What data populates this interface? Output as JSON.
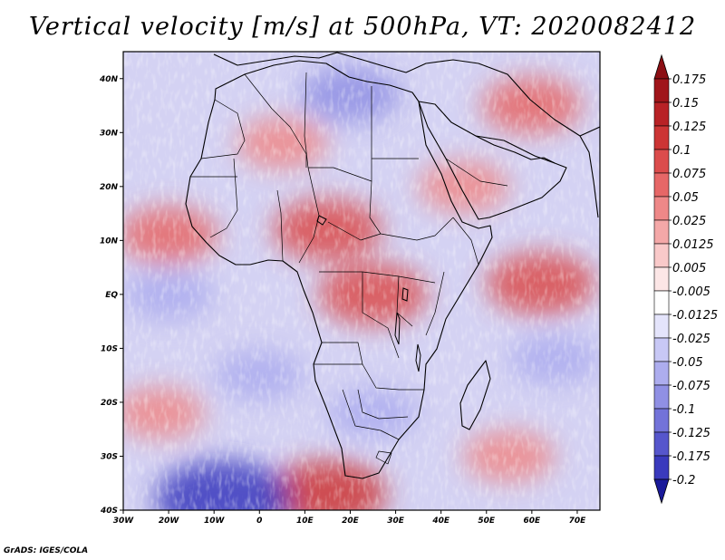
{
  "title": "Vertical velocity [m/s] at 500hPa, VT: 2020082412",
  "credit": "GrADS: IGES/COLA",
  "map": {
    "region": "Africa and surrounding oceans",
    "lon_range": [
      -30,
      75
    ],
    "lat_range": [
      -40,
      45
    ],
    "x_ticks": [
      {
        "lon": -30,
        "label": "30W"
      },
      {
        "lon": -20,
        "label": "20W"
      },
      {
        "lon": -10,
        "label": "10W"
      },
      {
        "lon": 0,
        "label": "0"
      },
      {
        "lon": 10,
        "label": "10E"
      },
      {
        "lon": 20,
        "label": "20E"
      },
      {
        "lon": 30,
        "label": "30E"
      },
      {
        "lon": 40,
        "label": "40E"
      },
      {
        "lon": 50,
        "label": "50E"
      },
      {
        "lon": 60,
        "label": "60E"
      },
      {
        "lon": 70,
        "label": "70E"
      }
    ],
    "y_ticks": [
      {
        "lat": 40,
        "label": "40N"
      },
      {
        "lat": 30,
        "label": "30N"
      },
      {
        "lat": 20,
        "label": "20N"
      },
      {
        "lat": 10,
        "label": "10N"
      },
      {
        "lat": 0,
        "label": "EQ"
      },
      {
        "lat": -10,
        "label": "10S"
      },
      {
        "lat": -20,
        "label": "20S"
      },
      {
        "lat": -30,
        "label": "30S"
      },
      {
        "lat": -40,
        "label": "40S"
      }
    ],
    "field_regions": [
      {
        "name": "sahel-ascent",
        "lon": 15,
        "lat": 12,
        "value": 0.1
      },
      {
        "name": "west-africa-coast-ascent",
        "lon": -20,
        "lat": 11,
        "value": 0.075
      },
      {
        "name": "congo-ascent",
        "lon": 25,
        "lat": 0,
        "value": 0.1
      },
      {
        "name": "arabia-ascent",
        "lon": 45,
        "lat": 20,
        "value": 0.05
      },
      {
        "name": "mideast-ascent",
        "lon": 60,
        "lat": 35,
        "value": 0.075
      },
      {
        "name": "sahara-ascent",
        "lon": 5,
        "lat": 28,
        "value": 0.05
      },
      {
        "name": "indian-ocean-ascent",
        "lon": 62,
        "lat": 2,
        "value": 0.1
      },
      {
        "name": "south-atlantic-ascent",
        "lon": 15,
        "lat": -37,
        "value": 0.125
      },
      {
        "name": "southwest-atlantic-ascent",
        "lon": -22,
        "lat": -22,
        "value": 0.05
      },
      {
        "name": "south-indian-ascent",
        "lon": 55,
        "lat": -30,
        "value": 0.05
      },
      {
        "name": "atlantic-descent",
        "lon": -20,
        "lat": 0,
        "value": -0.05
      },
      {
        "name": "mediterranean-descent",
        "lon": 20,
        "lat": 37,
        "value": -0.075
      },
      {
        "name": "southeast-atlantic-descent",
        "lon": 0,
        "lat": -15,
        "value": -0.05
      },
      {
        "name": "southern-ocean-descent",
        "lon": -8,
        "lat": -38,
        "value": -0.175
      },
      {
        "name": "southern-africa-descent",
        "lon": 25,
        "lat": -22,
        "value": -0.05
      },
      {
        "name": "indian-ocean-descent",
        "lon": 65,
        "lat": -12,
        "value": -0.05
      }
    ]
  },
  "colorbar": {
    "levels": [
      {
        "label": "0.175",
        "color": "#a0151a"
      },
      {
        "label": "0.15",
        "color": "#b82226"
      },
      {
        "label": "0.125",
        "color": "#cc3535"
      },
      {
        "label": "0.1",
        "color": "#db4c4c"
      },
      {
        "label": "0.075",
        "color": "#e66767"
      },
      {
        "label": "0.05",
        "color": "#ee8888"
      },
      {
        "label": "0.025",
        "color": "#f4a8a8"
      },
      {
        "label": "0.0125",
        "color": "#f9c9c9"
      },
      {
        "label": "0.005",
        "color": "#fce6e6"
      },
      {
        "label": "-0.005",
        "color": "#ffffff"
      },
      {
        "label": "-0.0125",
        "color": "#e4e4fb"
      },
      {
        "label": "-0.025",
        "color": "#c8c8f5"
      },
      {
        "label": "-0.05",
        "color": "#adadee"
      },
      {
        "label": "-0.075",
        "color": "#9090e4"
      },
      {
        "label": "-0.1",
        "color": "#7373d9"
      },
      {
        "label": "-0.125",
        "color": "#5656cc"
      },
      {
        "label": "-0.175",
        "color": "#3a3abd"
      },
      {
        "label": "-0.2",
        "color": "#2020a8"
      }
    ],
    "top_arrow_color": "#8c0f14",
    "bottom_arrow_color": "#1a1a9a"
  }
}
